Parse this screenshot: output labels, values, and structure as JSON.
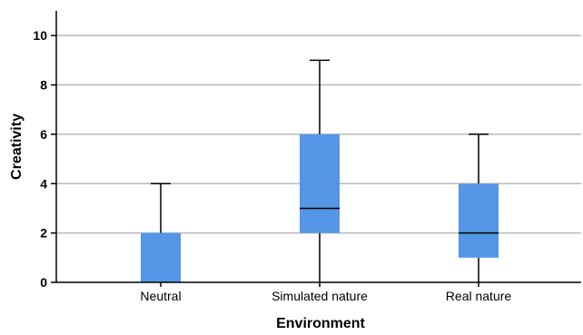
{
  "chart_data": {
    "type": "boxplot",
    "title": "",
    "xlabel": "Environment",
    "ylabel": "Creativity",
    "ylim": [
      0,
      11
    ],
    "yticks": [
      0,
      2,
      4,
      6,
      8,
      10
    ],
    "grid": true,
    "legend": "none",
    "box_color": "#5596e6",
    "categories": [
      "Neutral",
      "Simulated nature",
      "Real nature"
    ],
    "boxes": [
      {
        "category": "Neutral",
        "min": 0,
        "q1": 0,
        "median": 0,
        "q3": 2,
        "max": 4
      },
      {
        "category": "Simulated nature",
        "min": 0,
        "q1": 2,
        "median": 3,
        "q3": 6,
        "max": 9
      },
      {
        "category": "Real nature",
        "min": 0,
        "q1": 1,
        "median": 2,
        "q3": 4,
        "max": 6
      }
    ]
  }
}
